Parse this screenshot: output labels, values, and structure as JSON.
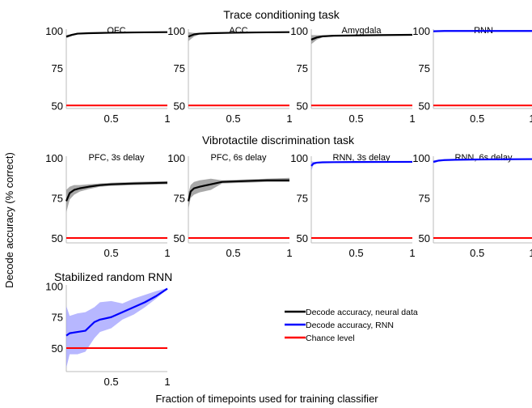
{
  "figure": {
    "row_titles": [
      "Trace conditioning task",
      "Vibrotactile discrimination task",
      "Stabilized random RNN"
    ],
    "ylabel": "Decode accuracy (% correct)",
    "xlabel": "Fraction of timepoints used for training classifier"
  },
  "legend": [
    {
      "label": "Decode accuracy, neural data",
      "color": "#000000"
    },
    {
      "label": "Decode accuracy, RNN",
      "color": "#0000ff"
    },
    {
      "label": "Chance level",
      "color": "#ff0000"
    }
  ],
  "colors": {
    "neural": "#000000",
    "rnn": "#0000ff",
    "chance": "#ff0000",
    "neural_band": "#999999",
    "rnn_band": "#9999ff"
  },
  "chart_data": [
    {
      "type": "line",
      "title": "OFC",
      "group": "Trace conditioning task",
      "xlim": [
        0.1,
        1
      ],
      "ylim": [
        48,
        101
      ],
      "xticks": [
        0.5,
        1
      ],
      "yticks": [
        50,
        75,
        100
      ],
      "xtick_labels": [
        "0.5",
        "1"
      ],
      "ytick_labels": [
        "50",
        "75",
        "100"
      ],
      "series": [
        {
          "kind": "neural",
          "x": [
            0.1,
            0.15,
            0.2,
            0.3,
            0.5,
            0.7,
            1.0
          ],
          "y": [
            96,
            97.2,
            98,
            98.3,
            98.6,
            98.8,
            99
          ],
          "lo": [
            95,
            96.5,
            97.5,
            98,
            98.4,
            98.6,
            98.8
          ],
          "hi": [
            97,
            97.8,
            98.5,
            98.6,
            98.8,
            99,
            99.2
          ]
        },
        {
          "kind": "chance",
          "x": [
            0.1,
            1.0
          ],
          "y": [
            50,
            50
          ]
        }
      ]
    },
    {
      "type": "line",
      "title": "ACC",
      "group": "Trace conditioning task",
      "xlim": [
        0.1,
        1
      ],
      "ylim": [
        48,
        101
      ],
      "xticks": [
        0.5,
        1
      ],
      "yticks": [
        50,
        75,
        100
      ],
      "xtick_labels": [
        "0.5",
        "1"
      ],
      "ytick_labels": [
        "50",
        "75",
        "100"
      ],
      "series": [
        {
          "kind": "neural",
          "x": [
            0.1,
            0.15,
            0.2,
            0.3,
            0.5,
            0.7,
            1.0
          ],
          "y": [
            96,
            97.5,
            98,
            98.3,
            98.6,
            98.8,
            99
          ],
          "lo": [
            93,
            96,
            97.5,
            98,
            98.4,
            98.6,
            98.8
          ],
          "hi": [
            99,
            98.5,
            98.5,
            98.6,
            98.8,
            99,
            99.2
          ]
        },
        {
          "kind": "chance",
          "x": [
            0.1,
            1.0
          ],
          "y": [
            50,
            50
          ]
        }
      ]
    },
    {
      "type": "line",
      "title": "Amygdala",
      "group": "Trace conditioning task",
      "xlim": [
        0.1,
        1
      ],
      "ylim": [
        48,
        101
      ],
      "xticks": [
        0.5,
        1
      ],
      "yticks": [
        50,
        75,
        100
      ],
      "xtick_labels": [
        "0.5",
        "1"
      ],
      "ytick_labels": [
        "50",
        "75",
        "100"
      ],
      "series": [
        {
          "kind": "neural",
          "x": [
            0.1,
            0.15,
            0.2,
            0.3,
            0.5,
            0.7,
            1.0
          ],
          "y": [
            94,
            95.5,
            96.2,
            96.6,
            96.8,
            97,
            97.2
          ],
          "lo": [
            91,
            94,
            95.5,
            96.2,
            96.5,
            96.8,
            97
          ],
          "hi": [
            97,
            97,
            96.9,
            97,
            97.1,
            97.2,
            97.4
          ]
        },
        {
          "kind": "chance",
          "x": [
            0.1,
            1.0
          ],
          "y": [
            50,
            50
          ]
        }
      ]
    },
    {
      "type": "line",
      "title": "RNN",
      "group": "Trace conditioning task",
      "xlim": [
        0.1,
        1
      ],
      "ylim": [
        48,
        101
      ],
      "xticks": [
        0.5,
        1
      ],
      "yticks": [
        50,
        75,
        100
      ],
      "xtick_labels": [
        "0.5",
        "1"
      ],
      "ytick_labels": [
        "50",
        "75",
        "100"
      ],
      "series": [
        {
          "kind": "rnn",
          "x": [
            0.1,
            0.2,
            0.5,
            1.0
          ],
          "y": [
            99.6,
            99.8,
            99.8,
            99.8
          ],
          "lo": [
            99.3,
            99.6,
            99.7,
            99.7
          ],
          "hi": [
            99.9,
            99.9,
            99.9,
            99.9
          ]
        },
        {
          "kind": "chance",
          "x": [
            0.1,
            1.0
          ],
          "y": [
            50,
            50
          ]
        }
      ]
    },
    {
      "type": "line",
      "title": "PFC, 3s delay",
      "group": "Vibrotactile discrimination task",
      "xlim": [
        0.1,
        1
      ],
      "ylim": [
        47,
        101
      ],
      "xticks": [
        0.5,
        1
      ],
      "yticks": [
        50,
        75,
        100
      ],
      "xtick_labels": [
        "0.5",
        "1"
      ],
      "ytick_labels": [
        "50",
        "75",
        "100"
      ],
      "series": [
        {
          "kind": "neural",
          "x": [
            0.1,
            0.13,
            0.17,
            0.22,
            0.3,
            0.4,
            0.5,
            0.7,
            1.0
          ],
          "y": [
            73,
            78,
            80,
            81,
            82,
            83,
            83.5,
            84,
            84.5
          ],
          "lo": [
            66,
            74,
            77,
            79,
            80.5,
            82,
            82.5,
            83,
            83.5
          ],
          "hi": [
            80,
            82,
            83,
            83,
            83.5,
            84,
            84.5,
            85,
            85.5
          ]
        },
        {
          "kind": "chance",
          "x": [
            0.1,
            1.0
          ],
          "y": [
            50,
            50
          ]
        }
      ]
    },
    {
      "type": "line",
      "title": "PFC, 6s delay",
      "group": "Vibrotactile discrimination task",
      "xlim": [
        0.1,
        1
      ],
      "ylim": [
        47,
        101
      ],
      "xticks": [
        0.5,
        1
      ],
      "yticks": [
        50,
        75,
        100
      ],
      "xtick_labels": [
        "0.5",
        "1"
      ],
      "ytick_labels": [
        "50",
        "75",
        "100"
      ],
      "series": [
        {
          "kind": "neural",
          "x": [
            0.1,
            0.12,
            0.15,
            0.2,
            0.3,
            0.4,
            0.6,
            0.8,
            1.0
          ],
          "y": [
            73,
            79,
            81,
            82,
            83.5,
            85,
            85.5,
            86,
            86
          ],
          "lo": [
            68,
            75,
            77,
            78.5,
            80,
            84,
            84.5,
            85,
            85
          ],
          "hi": [
            78,
            83,
            85,
            86,
            87,
            86,
            86.5,
            87,
            87.5
          ]
        },
        {
          "kind": "chance",
          "x": [
            0.1,
            1.0
          ],
          "y": [
            50,
            50
          ]
        }
      ]
    },
    {
      "type": "line",
      "title": "RNN, 3s delay",
      "group": "Vibrotactile discrimination task",
      "xlim": [
        0.1,
        1
      ],
      "ylim": [
        47,
        101
      ],
      "xticks": [
        0.5,
        1
      ],
      "yticks": [
        50,
        75,
        100
      ],
      "xtick_labels": [
        "0.5",
        "1"
      ],
      "ytick_labels": [
        "50",
        "75",
        "100"
      ],
      "series": [
        {
          "kind": "rnn",
          "x": [
            0.1,
            0.12,
            0.15,
            0.2,
            0.3,
            0.5,
            1.0
          ],
          "y": [
            95,
            96.5,
            97,
            97.2,
            97.3,
            97.4,
            97.5
          ],
          "lo": [
            92,
            95.5,
            96.5,
            96.8,
            97,
            97.1,
            97.2
          ],
          "hi": [
            98,
            97.5,
            97.5,
            97.6,
            97.6,
            97.7,
            97.8
          ]
        },
        {
          "kind": "chance",
          "x": [
            0.1,
            1.0
          ],
          "y": [
            50,
            50
          ]
        }
      ]
    },
    {
      "type": "line",
      "title": "RNN, 6s delay",
      "group": "Vibrotactile discrimination task",
      "xlim": [
        0.1,
        1
      ],
      "ylim": [
        47,
        101
      ],
      "xticks": [
        0.5,
        1
      ],
      "yticks": [
        50,
        75,
        100
      ],
      "xtick_labels": [
        "0.5",
        "1"
      ],
      "ytick_labels": [
        "50",
        "75",
        "100"
      ],
      "series": [
        {
          "kind": "rnn",
          "x": [
            0.1,
            0.15,
            0.2,
            0.3,
            0.5,
            1.0
          ],
          "y": [
            97.5,
            98.3,
            98.6,
            98.8,
            99,
            99.2
          ],
          "lo": [
            96.5,
            97.8,
            98.3,
            98.6,
            98.8,
            99
          ],
          "hi": [
            98.5,
            98.8,
            98.9,
            99,
            99.2,
            99.4
          ]
        },
        {
          "kind": "chance",
          "x": [
            0.1,
            1.0
          ],
          "y": [
            50,
            50
          ]
        }
      ]
    },
    {
      "type": "line",
      "title": "Stabilized random RNN",
      "group": "Stabilized random RNN",
      "xlim": [
        0.1,
        1
      ],
      "ylim": [
        31,
        101
      ],
      "xticks": [
        0.5,
        1
      ],
      "yticks": [
        50,
        75,
        100
      ],
      "xtick_labels": [
        "0.5",
        "1"
      ],
      "ytick_labels": [
        "50",
        "75",
        "100"
      ],
      "series": [
        {
          "kind": "rnn",
          "x": [
            0.1,
            0.13,
            0.2,
            0.27,
            0.35,
            0.4,
            0.5,
            0.6,
            0.7,
            0.8,
            0.9,
            1.0
          ],
          "y": [
            60,
            62,
            63,
            64,
            71,
            73,
            75,
            79,
            83,
            87,
            92,
            98
          ],
          "lo": [
            34,
            45,
            45,
            47,
            58,
            63,
            66,
            73,
            77,
            83,
            90,
            97.5
          ],
          "hi": [
            84,
            76,
            78,
            79,
            83,
            87,
            88,
            86,
            90,
            93,
            96,
            98.5
          ]
        },
        {
          "kind": "chance",
          "x": [
            0.1,
            1.0
          ],
          "y": [
            50,
            50
          ]
        }
      ]
    }
  ]
}
